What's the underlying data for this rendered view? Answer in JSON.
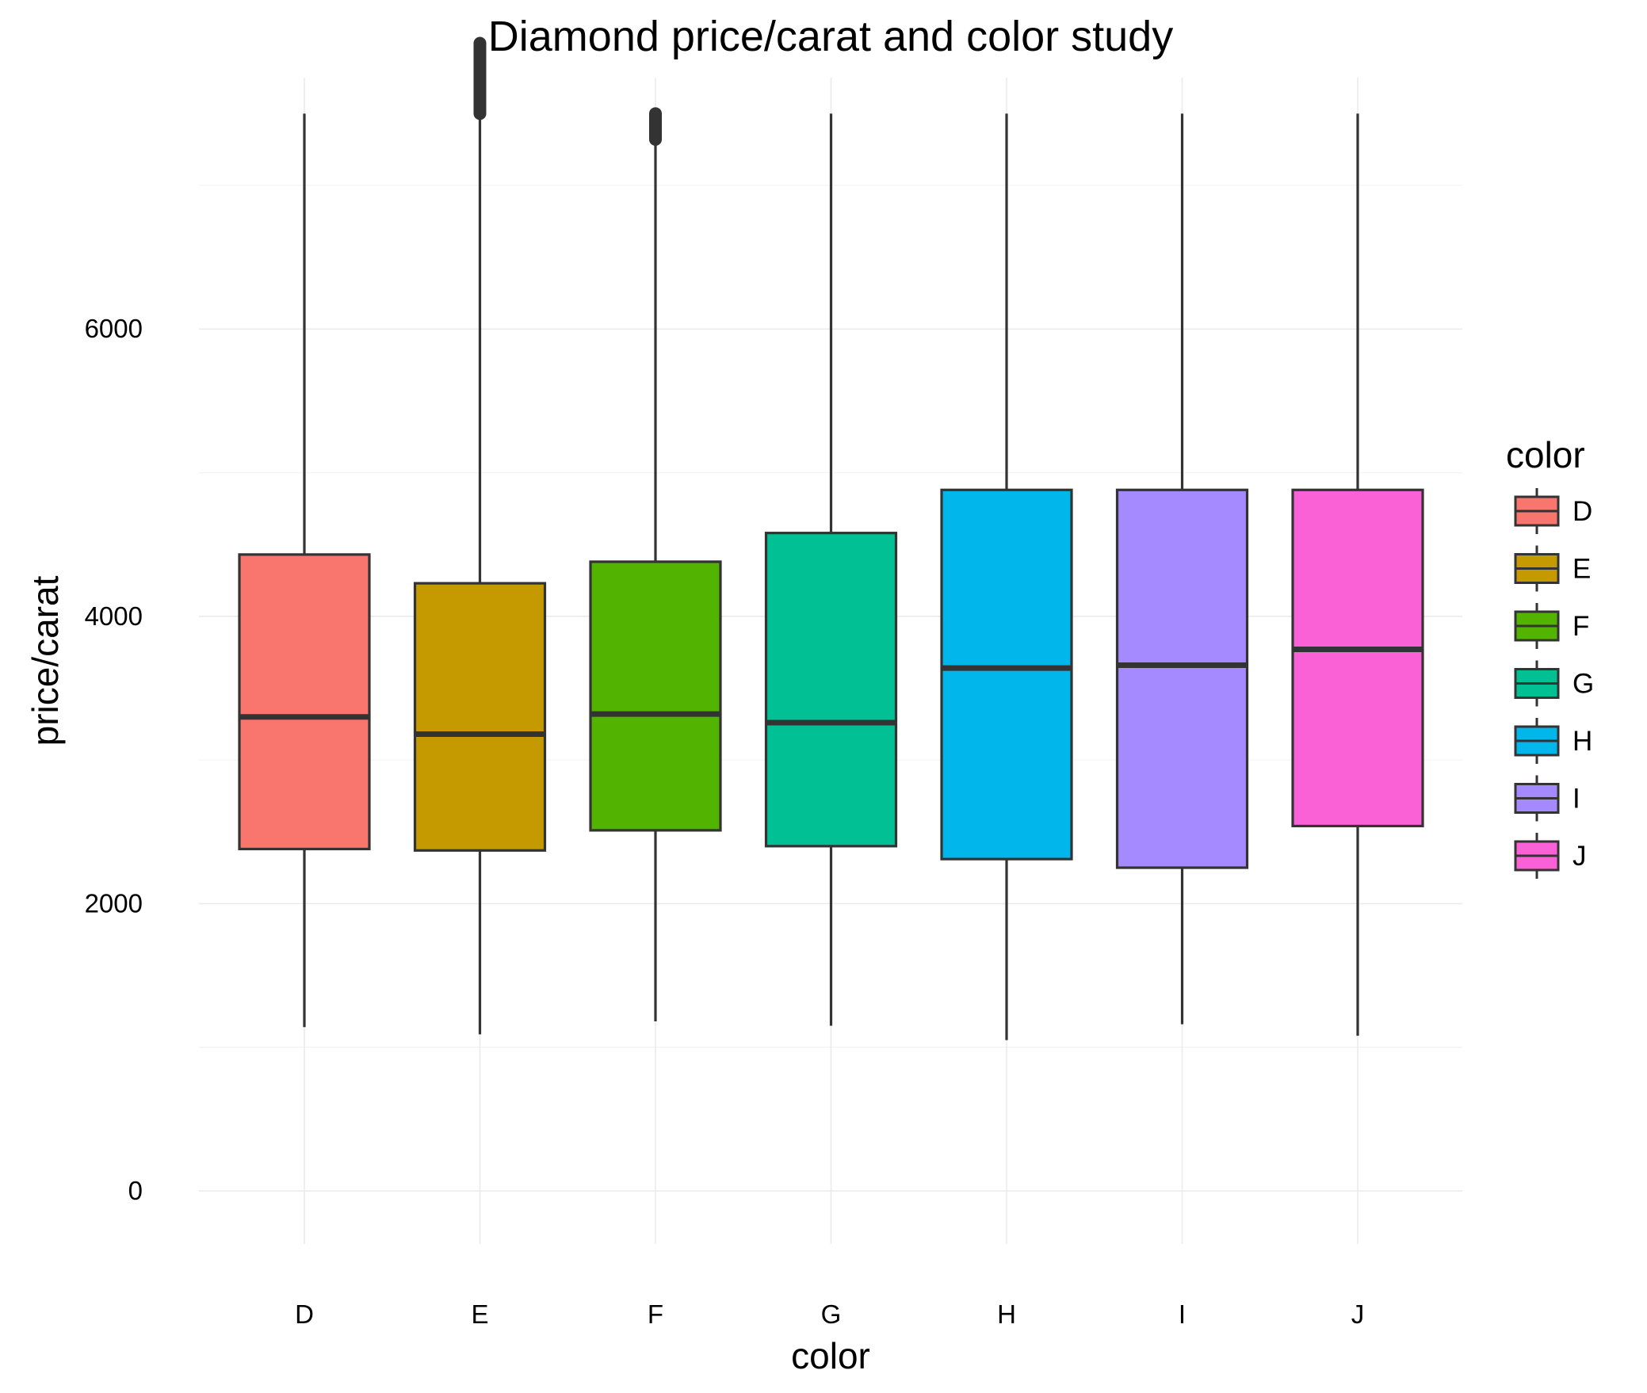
{
  "chart_data": {
    "type": "box",
    "title": "Diamond price/carat and color study",
    "xlabel": "color",
    "ylabel": "price/carat",
    "ylim": [
      -370,
      7750
    ],
    "yticks": [
      0,
      2000,
      4000,
      6000
    ],
    "grid": true,
    "legend": {
      "title": "color",
      "position": "right"
    },
    "categories": [
      "D",
      "E",
      "F",
      "G",
      "H",
      "I",
      "J"
    ],
    "series": [
      {
        "category": "D",
        "color": "#F8766D",
        "whisker_low": 1140,
        "q1": 2380,
        "median": 3300,
        "q3": 4430,
        "whisker_high": 7500,
        "outlier_range": null
      },
      {
        "category": "E",
        "color": "#C49A00",
        "whisker_low": 1090,
        "q1": 2370,
        "median": 3180,
        "q3": 4230,
        "whisker_high": 7990,
        "outlier_range": [
          7990,
          7500
        ]
      },
      {
        "category": "F",
        "color": "#53B400",
        "whisker_low": 1180,
        "q1": 2510,
        "median": 3320,
        "q3": 4380,
        "whisker_high": 7320,
        "outlier_range": [
          7320,
          7500
        ]
      },
      {
        "category": "G",
        "color": "#00C094",
        "whisker_low": 1150,
        "q1": 2400,
        "median": 3260,
        "q3": 4580,
        "whisker_high": 7500,
        "outlier_range": null
      },
      {
        "category": "H",
        "color": "#00B6EB",
        "whisker_low": 1050,
        "q1": 2310,
        "median": 3640,
        "q3": 4880,
        "whisker_high": 7500,
        "outlier_range": null
      },
      {
        "category": "I",
        "color": "#A58AFF",
        "whisker_low": 1160,
        "q1": 2250,
        "median": 3660,
        "q3": 4880,
        "whisker_high": 7500,
        "outlier_range": null
      },
      {
        "category": "J",
        "color": "#FB61D7",
        "whisker_low": 1080,
        "q1": 2540,
        "median": 3770,
        "q3": 4880,
        "whisker_high": 7500,
        "outlier_range": null
      }
    ]
  }
}
